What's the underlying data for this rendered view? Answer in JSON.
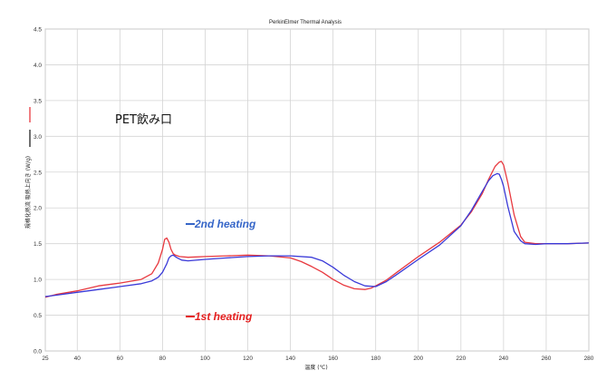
{
  "chart_data": {
    "type": "line",
    "title": "PerkinElmer Thermal Analysis",
    "xlabel": "温度 (℃)",
    "ylabel": "規格化熱流 吸熱上向き (W/g)",
    "xlim": [
      25,
      280
    ],
    "ylim": [
      0.0,
      4.5
    ],
    "x_ticks": [
      "25",
      "40",
      "60",
      "80",
      "100",
      "120",
      "140",
      "160",
      "180",
      "200",
      "220",
      "240",
      "260",
      "280"
    ],
    "y_ticks": [
      "0.0",
      "0.5",
      "1.0",
      "1.5",
      "2.0",
      "2.5",
      "3.0",
      "3.5",
      "4.0",
      "4.5"
    ],
    "grid": true,
    "annotation": "PET飲み口",
    "series": [
      {
        "name": "1st heating",
        "color": "#e8393f",
        "legend_color": "#e41e1e",
        "x": [
          25,
          30,
          40,
          50,
          60,
          70,
          75,
          78,
          80,
          81,
          82,
          83,
          84,
          85,
          86,
          88,
          92,
          100,
          110,
          120,
          130,
          140,
          145,
          150,
          155,
          160,
          165,
          170,
          175,
          178,
          180,
          185,
          190,
          200,
          210,
          220,
          225,
          230,
          233,
          236,
          238,
          239,
          240,
          242,
          245,
          248,
          250,
          255,
          260,
          270,
          280
        ],
        "values": [
          0.75,
          0.79,
          0.84,
          0.91,
          0.95,
          1.0,
          1.08,
          1.23,
          1.42,
          1.56,
          1.58,
          1.52,
          1.42,
          1.36,
          1.34,
          1.32,
          1.31,
          1.32,
          1.33,
          1.34,
          1.33,
          1.3,
          1.25,
          1.18,
          1.1,
          1.0,
          0.92,
          0.87,
          0.86,
          0.88,
          0.91,
          0.99,
          1.1,
          1.32,
          1.52,
          1.76,
          1.95,
          2.2,
          2.4,
          2.58,
          2.64,
          2.65,
          2.6,
          2.35,
          1.9,
          1.6,
          1.52,
          1.5,
          1.5,
          1.5,
          1.51
        ]
      },
      {
        "name": "2nd heating",
        "color": "#3a3ad8",
        "legend_color": "#3565c8",
        "x": [
          25,
          30,
          40,
          50,
          60,
          70,
          75,
          78,
          80,
          82,
          83,
          84,
          85,
          86,
          87,
          89,
          92,
          100,
          110,
          120,
          130,
          140,
          150,
          155,
          160,
          165,
          170,
          175,
          180,
          185,
          190,
          200,
          210,
          220,
          225,
          230,
          233,
          235,
          237,
          238,
          239,
          240,
          242,
          245,
          248,
          250,
          255,
          260,
          270,
          280
        ],
        "values": [
          0.76,
          0.78,
          0.82,
          0.86,
          0.9,
          0.94,
          0.98,
          1.03,
          1.1,
          1.22,
          1.3,
          1.33,
          1.34,
          1.32,
          1.3,
          1.27,
          1.26,
          1.28,
          1.3,
          1.32,
          1.33,
          1.33,
          1.31,
          1.26,
          1.17,
          1.06,
          0.97,
          0.91,
          0.9,
          0.97,
          1.07,
          1.28,
          1.48,
          1.75,
          1.97,
          2.23,
          2.38,
          2.45,
          2.48,
          2.47,
          2.4,
          2.3,
          2.02,
          1.67,
          1.54,
          1.5,
          1.49,
          1.5,
          1.5,
          1.51
        ]
      }
    ]
  }
}
